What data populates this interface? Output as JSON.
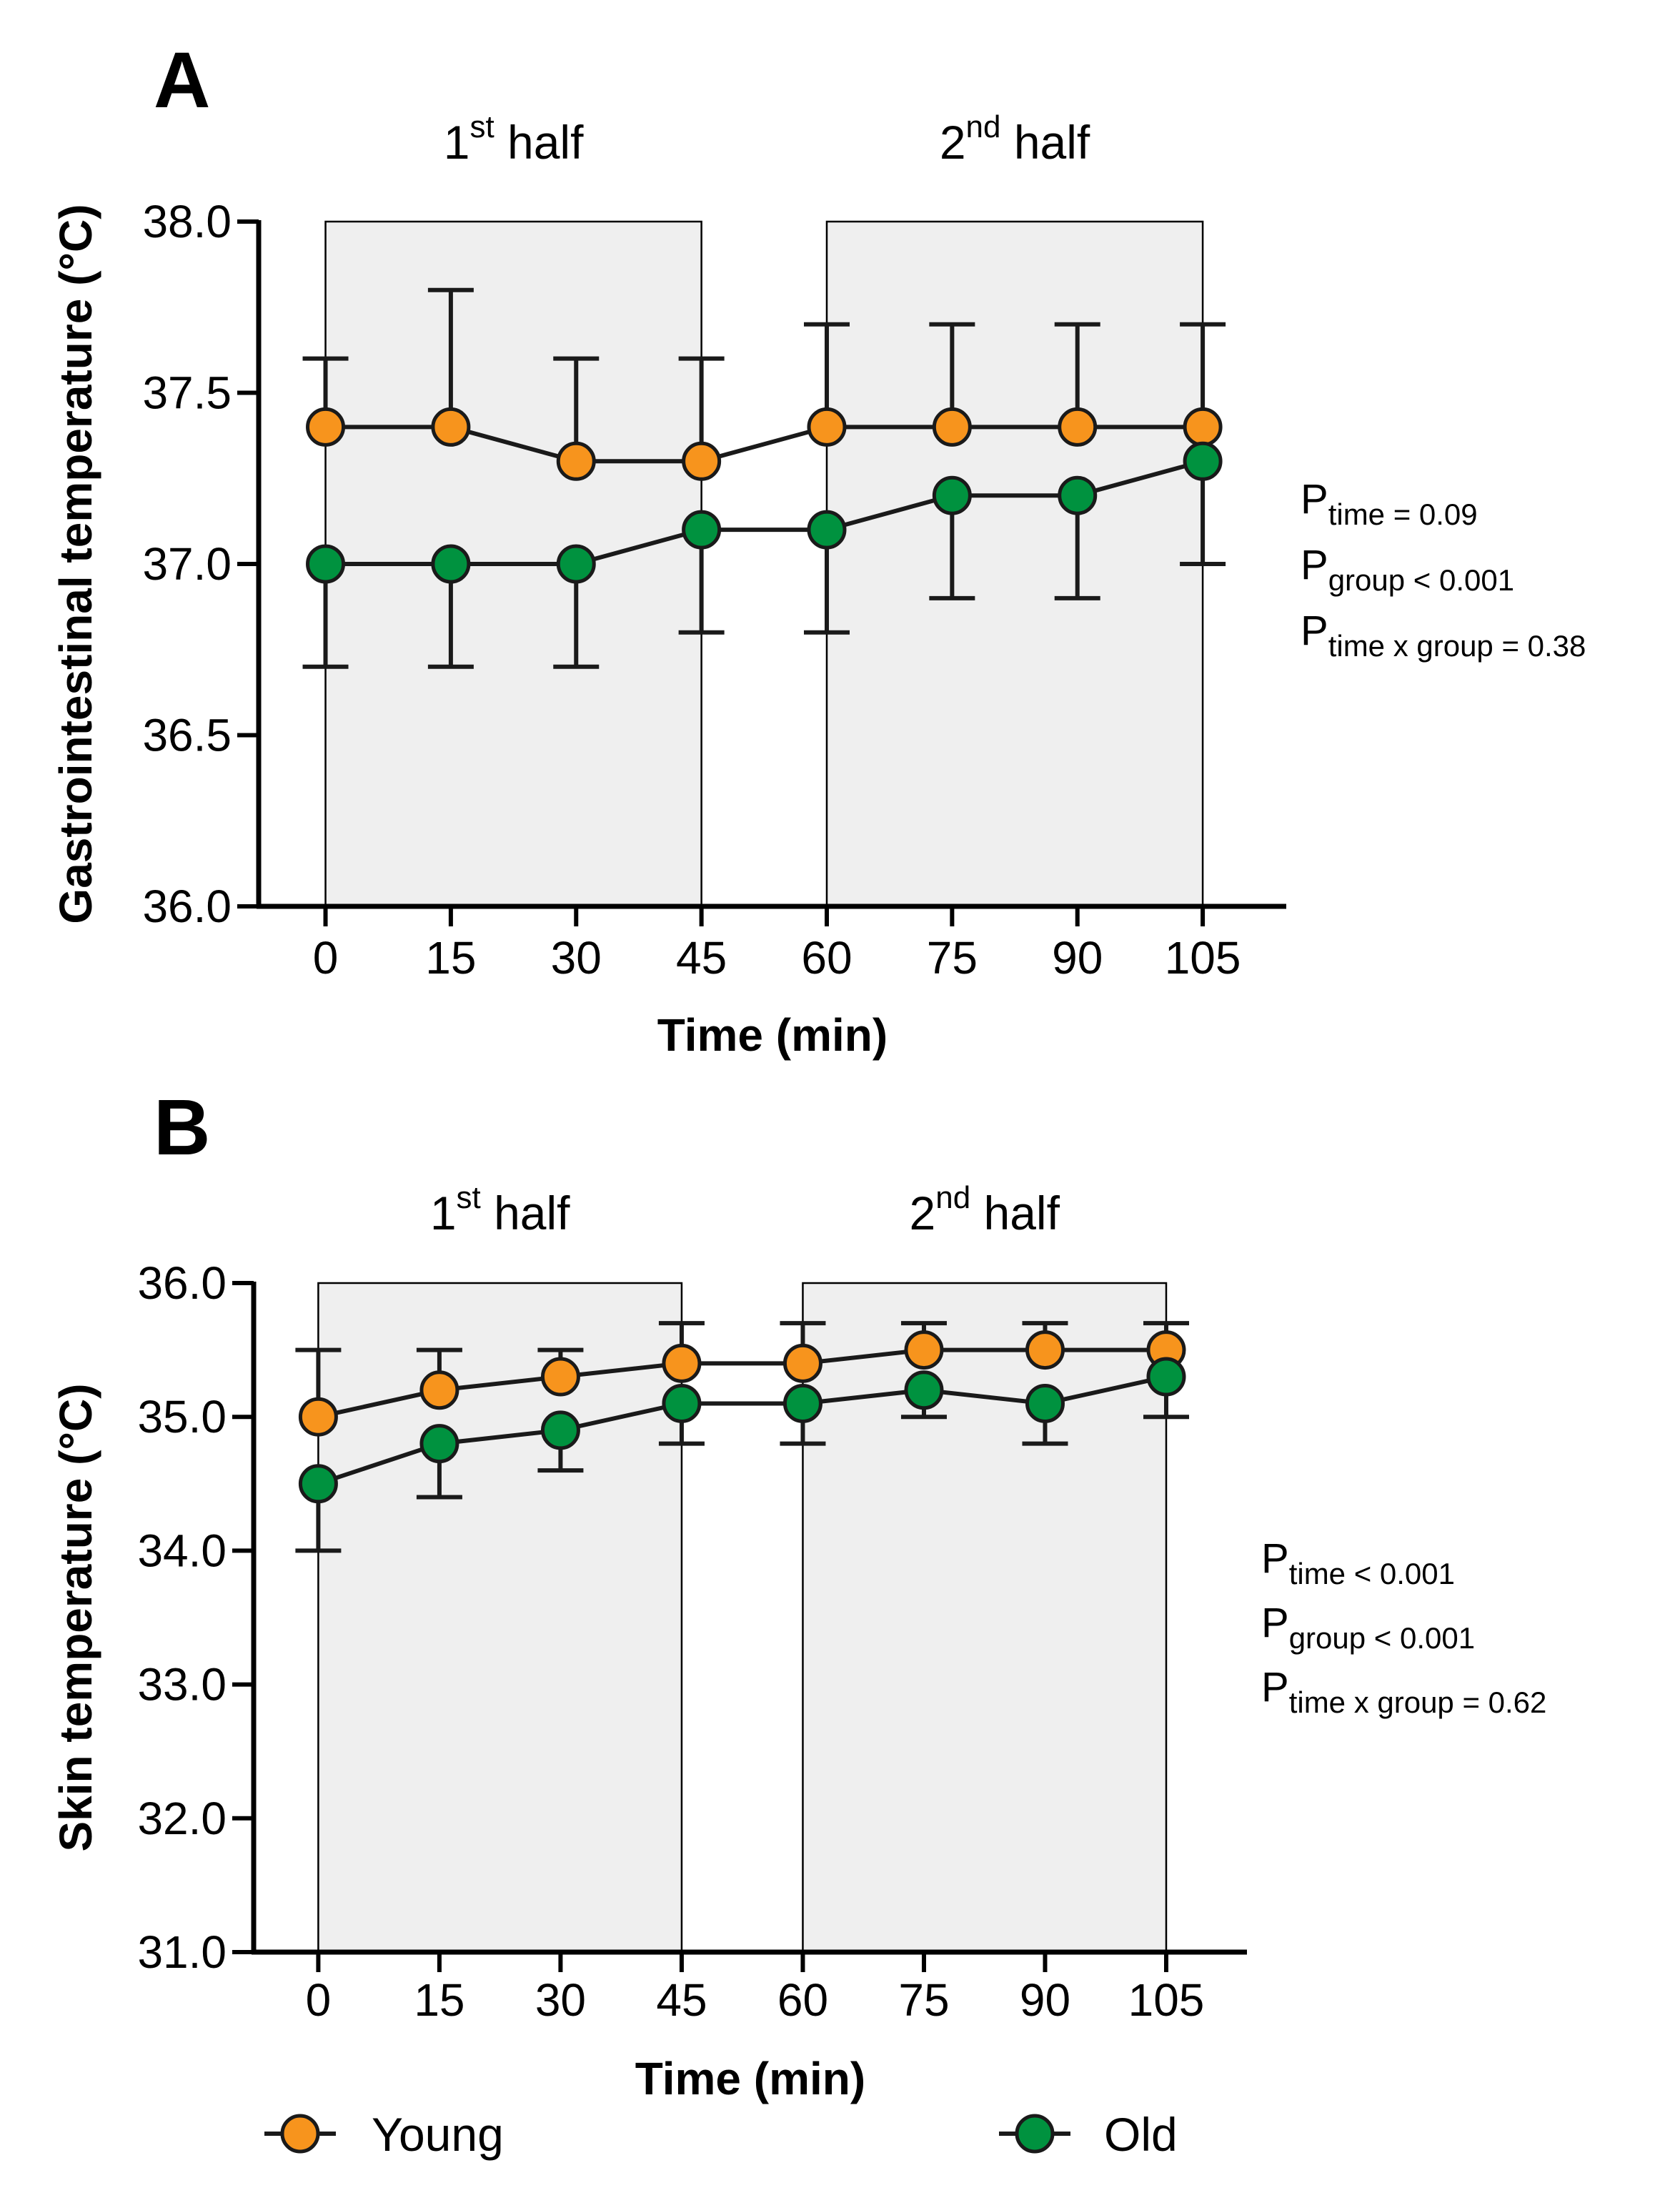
{
  "chart_data": [
    {
      "type": "line",
      "panel_label": "A",
      "periods": [
        {
          "base": "1",
          "sup": "st",
          "rest": " half",
          "x_start": 0,
          "x_end": 45
        },
        {
          "base": "2",
          "sup": "nd",
          "rest": " half",
          "x_start": 60,
          "x_end": 105
        }
      ],
      "x": [
        0,
        15,
        30,
        45,
        60,
        75,
        90,
        105
      ],
      "x_tick_labels": [
        "0",
        "15",
        "30",
        "45",
        "60",
        "75",
        "90",
        "105"
      ],
      "xlim": [
        -8,
        115
      ],
      "ylim": [
        36.0,
        38.0
      ],
      "y_ticks": [
        36.0,
        36.5,
        37.0,
        37.5,
        38.0
      ],
      "y_tick_labels": [
        "36.0",
        "36.5",
        "37.0",
        "37.5",
        "38.0"
      ],
      "xlabel": "Time (min)",
      "ylabel": "Gastrointestinal temperature (°C)",
      "series": [
        {
          "name": "Young",
          "color": "#f7941d",
          "values": [
            37.4,
            37.4,
            37.3,
            37.3,
            37.4,
            37.4,
            37.4,
            37.4
          ],
          "error": [
            0.2,
            0.4,
            0.3,
            0.3,
            0.3,
            0.3,
            0.3,
            0.3
          ],
          "error_dir": "up"
        },
        {
          "name": "Old",
          "color": "#00923f",
          "values": [
            37.0,
            37.0,
            37.0,
            37.1,
            37.1,
            37.2,
            37.2,
            37.3
          ],
          "error": [
            0.3,
            0.3,
            0.3,
            0.3,
            0.3,
            0.3,
            0.3,
            0.3
          ],
          "error_dir": "down"
        }
      ],
      "stats": [
        {
          "main": "P",
          "sub": "time = 0.09"
        },
        {
          "main": "P",
          "sub": "group < 0.001"
        },
        {
          "main": "P",
          "sub": "time x group = 0.38"
        }
      ]
    },
    {
      "type": "line",
      "panel_label": "B",
      "periods": [
        {
          "base": "1",
          "sup": "st",
          "rest": " half",
          "x_start": 0,
          "x_end": 45
        },
        {
          "base": "2",
          "sup": "nd",
          "rest": " half",
          "x_start": 60,
          "x_end": 105
        }
      ],
      "x": [
        0,
        15,
        30,
        45,
        60,
        75,
        90,
        105
      ],
      "x_tick_labels": [
        "0",
        "15",
        "30",
        "45",
        "60",
        "75",
        "90",
        "105"
      ],
      "xlim": [
        -8,
        115
      ],
      "ylim": [
        31.0,
        36.0
      ],
      "y_ticks": [
        31.0,
        32.0,
        33.0,
        34.0,
        35.0,
        36.0
      ],
      "y_tick_labels": [
        "31.0",
        "32.0",
        "33.0",
        "34.0",
        "35.0",
        "36.0"
      ],
      "xlabel": "Time (min)",
      "ylabel": "Skin temperature (°C)",
      "series": [
        {
          "name": "Young",
          "color": "#f7941d",
          "values": [
            35.0,
            35.2,
            35.3,
            35.4,
            35.4,
            35.5,
            35.5,
            35.5
          ],
          "error": [
            0.5,
            0.3,
            0.2,
            0.3,
            0.3,
            0.2,
            0.2,
            0.2
          ],
          "error_dir": "up"
        },
        {
          "name": "Old",
          "color": "#00923f",
          "values": [
            34.5,
            34.8,
            34.9,
            35.1,
            35.1,
            35.2,
            35.1,
            35.3
          ],
          "error": [
            0.5,
            0.4,
            0.3,
            0.3,
            0.3,
            0.2,
            0.3,
            0.3
          ],
          "error_dir": "down"
        }
      ],
      "stats": [
        {
          "main": "P",
          "sub": "time < 0.001"
        },
        {
          "main": "P",
          "sub": "group < 0.001"
        },
        {
          "main": "P",
          "sub": "time x group = 0.62"
        }
      ]
    }
  ],
  "legend": [
    {
      "name": "Young",
      "color": "#f7941d"
    },
    {
      "name": "Old",
      "color": "#00923f"
    }
  ]
}
